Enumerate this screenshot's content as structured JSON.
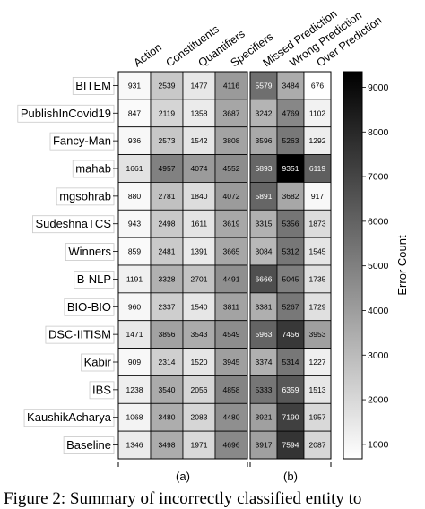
{
  "chart_data": [
    {
      "type": "heatmap",
      "panel_label": "(a)",
      "columns": [
        "Action",
        "Constituents",
        "Quantifiers",
        "Specifiers"
      ],
      "rows": [
        "BITEM",
        "PublishInCovid19",
        "Fancy-Man",
        "mahab",
        "mgsohrab",
        "SudeshnaTCS",
        "Winners",
        "B-NLP",
        "BIO-BIO",
        "DSC-IITISM",
        "Kabir",
        "IBS",
        "KaushikAcharya",
        "Baseline"
      ],
      "values": [
        [
          931,
          2539,
          1477,
          4116
        ],
        [
          847,
          2119,
          1358,
          3687
        ],
        [
          936,
          2573,
          1542,
          3808
        ],
        [
          1661,
          4957,
          4074,
          4552
        ],
        [
          880,
          2781,
          1840,
          4072
        ],
        [
          943,
          2498,
          1611,
          3619
        ],
        [
          859,
          2481,
          1391,
          3665
        ],
        [
          1191,
          3328,
          2701,
          4491
        ],
        [
          960,
          2337,
          1540,
          3811
        ],
        [
          1471,
          3856,
          3543,
          4549
        ],
        [
          909,
          2314,
          1520,
          3945
        ],
        [
          1238,
          3540,
          2056,
          4858
        ],
        [
          1068,
          3480,
          2083,
          4480
        ],
        [
          1346,
          3498,
          1971,
          4696
        ]
      ]
    },
    {
      "type": "heatmap",
      "panel_label": "(b)",
      "columns": [
        "Missed Prediction",
        "Wrong Prediction",
        "Over Prediction"
      ],
      "rows": [
        "BITEM",
        "PublishInCovid19",
        "Fancy-Man",
        "mahab",
        "mgsohrab",
        "SudeshnaTCS",
        "Winners",
        "B-NLP",
        "BIO-BIO",
        "DSC-IITISM",
        "Kabir",
        "IBS",
        "KaushikAcharya",
        "Baseline"
      ],
      "values": [
        [
          5579,
          3484,
          676
        ],
        [
          3242,
          4769,
          1102
        ],
        [
          3596,
          5263,
          1292
        ],
        [
          5893,
          9351,
          6119
        ],
        [
          5891,
          3682,
          917
        ],
        [
          3315,
          5356,
          1873
        ],
        [
          3084,
          5312,
          1545
        ],
        [
          6666,
          5045,
          1735
        ],
        [
          3381,
          5267,
          1729
        ],
        [
          5963,
          7456,
          3953
        ],
        [
          3374,
          5314,
          1227
        ],
        [
          5333,
          6359,
          1513
        ],
        [
          3921,
          7190,
          1957
        ],
        [
          3917,
          7594,
          2087
        ]
      ],
      "colorbar": {
        "label": "Error Count",
        "ticks": [
          1000,
          2000,
          3000,
          4000,
          5000,
          6000,
          7000,
          8000,
          9000
        ],
        "range": [
          676,
          9351
        ],
        "colormap": "grayscale (white = low, black = high)"
      }
    }
  ],
  "caption": "Figure 2: Summary of incorrectly classified entity to"
}
